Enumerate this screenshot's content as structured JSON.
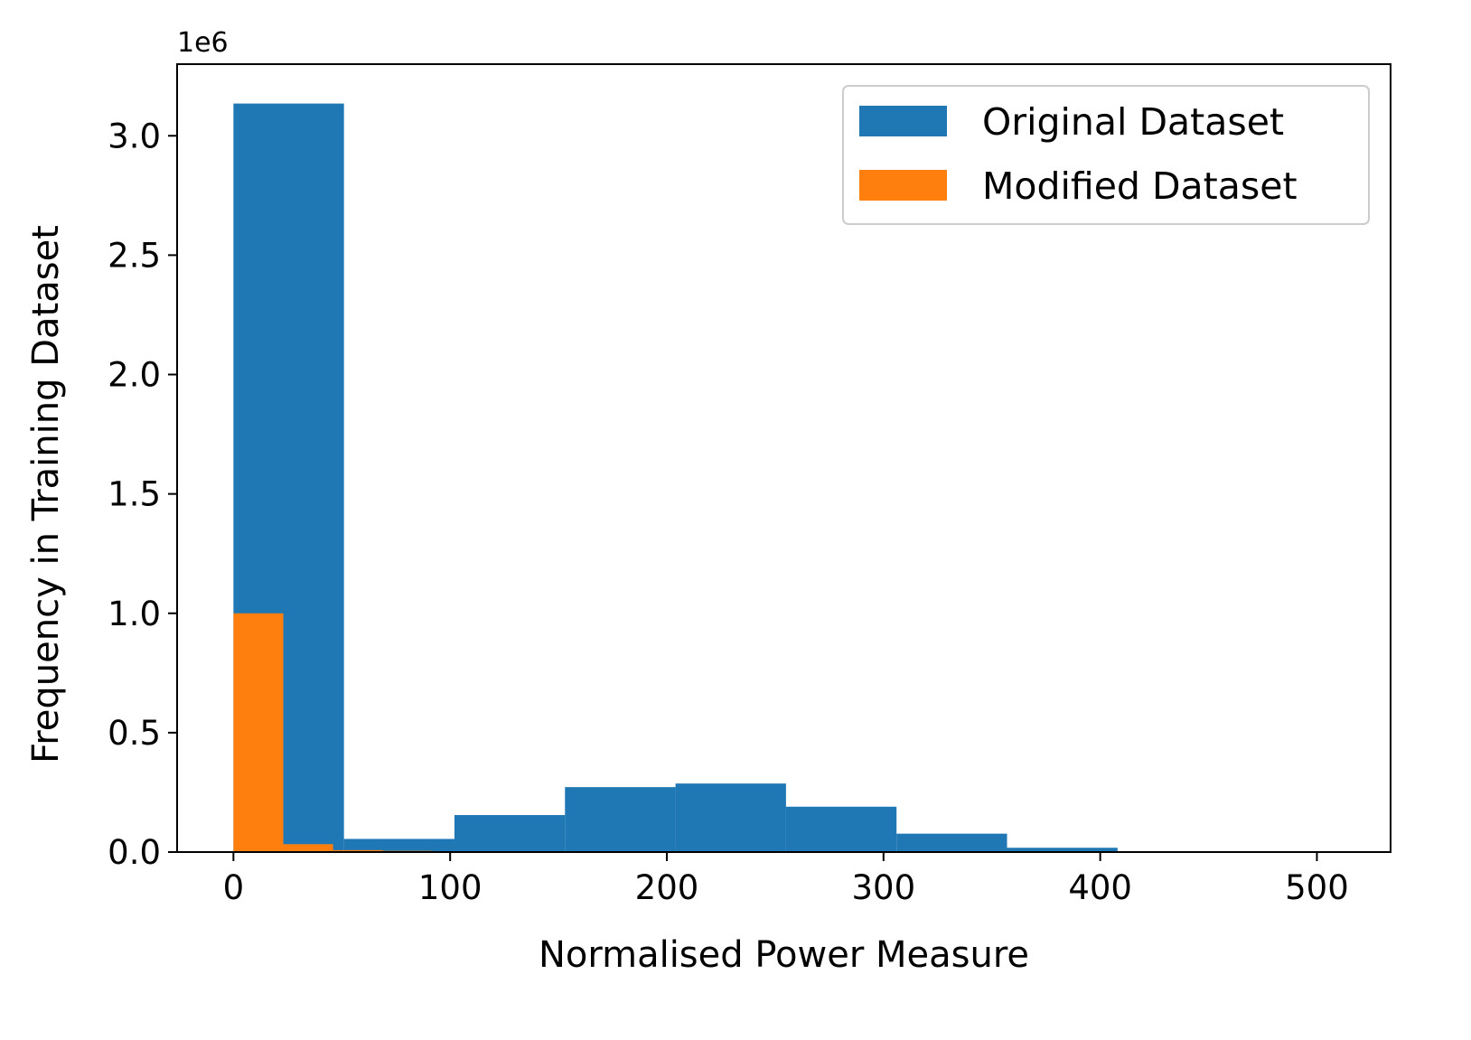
{
  "chart_data": {
    "type": "bar",
    "title": "",
    "xlabel": "Normalised Power Measure",
    "ylabel": "Frequency in Training Dataset",
    "y_offset_label": "1e6",
    "xlim": [
      -26,
      534
    ],
    "ylim": [
      0,
      3300000
    ],
    "x_ticks": [
      0,
      100,
      200,
      300,
      400,
      500
    ],
    "x_tick_labels": [
      "0",
      "100",
      "200",
      "300",
      "400",
      "500"
    ],
    "y_ticks": [
      0,
      500000,
      1000000,
      1500000,
      2000000,
      2500000,
      3000000
    ],
    "y_tick_labels": [
      "0.0",
      "0.5",
      "1.0",
      "1.5",
      "2.0",
      "2.5",
      "3.0"
    ],
    "grid": false,
    "legend_position": "top-right",
    "series": [
      {
        "name": "Original Dataset",
        "color": "#1f77b4",
        "bins": [
          {
            "x0": 0,
            "x1": 51,
            "value": 3135000
          },
          {
            "x0": 51,
            "x1": 102,
            "value": 55000
          },
          {
            "x0": 102,
            "x1": 153,
            "value": 155000
          },
          {
            "x0": 153,
            "x1": 204,
            "value": 272000
          },
          {
            "x0": 204,
            "x1": 255,
            "value": 287000
          },
          {
            "x0": 255,
            "x1": 306,
            "value": 190000
          },
          {
            "x0": 306,
            "x1": 357,
            "value": 77000
          },
          {
            "x0": 357,
            "x1": 408,
            "value": 18000
          },
          {
            "x0": 408,
            "x1": 459,
            "value": 2000
          },
          {
            "x0": 459,
            "x1": 510,
            "value": 500
          }
        ]
      },
      {
        "name": "Modified Dataset",
        "color": "#ff7f0e",
        "bins": [
          {
            "x0": 0,
            "x1": 23,
            "value": 1000000
          },
          {
            "x0": 23,
            "x1": 46,
            "value": 33000
          },
          {
            "x0": 46,
            "x1": 69,
            "value": 8000
          },
          {
            "x0": 69,
            "x1": 92,
            "value": 5000
          },
          {
            "x0": 92,
            "x1": 115,
            "value": 3000
          }
        ]
      }
    ]
  }
}
